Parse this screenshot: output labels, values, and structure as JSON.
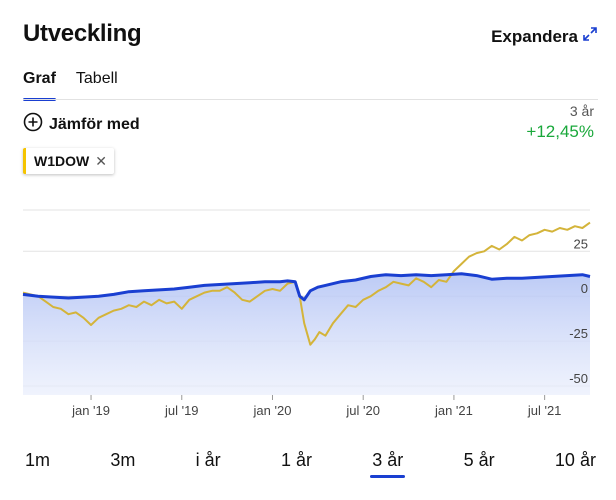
{
  "header": {
    "title": "Utveckling",
    "expand_label": "Expandera"
  },
  "tabs": [
    {
      "label": "Graf",
      "active": true
    },
    {
      "label": "Tabell",
      "active": false
    }
  ],
  "compare": {
    "label": "Jämför med",
    "icon": "plus-circle-icon"
  },
  "summary": {
    "period": "3 år",
    "change": "+12,45%",
    "change_color": "#1aa83b"
  },
  "chip": {
    "label": "W1DOW",
    "color": "#f5c400",
    "remove_icon": "close-icon"
  },
  "ranges": [
    {
      "label": "1m",
      "active": false
    },
    {
      "label": "3m",
      "active": false
    },
    {
      "label": "i år",
      "active": false
    },
    {
      "label": "1 år",
      "active": false
    },
    {
      "label": "3 år",
      "active": true
    },
    {
      "label": "5 år",
      "active": false
    },
    {
      "label": "10 år",
      "active": false
    }
  ],
  "chart_data": {
    "type": "line",
    "x_tick_labels": [
      "jan '19",
      "jul '19",
      "jan '20",
      "jul '20",
      "jan '21",
      "jul '21"
    ],
    "x_tick_positions": [
      4.5,
      10.5,
      16.5,
      22.5,
      28.5,
      34.5
    ],
    "xlim": [
      0,
      37.5
    ],
    "y_tick_labels": [
      "25",
      "0",
      "-25",
      "-50"
    ],
    "y_ticks": [
      25,
      0,
      -25,
      -50
    ],
    "ylim": [
      -55,
      48
    ],
    "grid": true,
    "y_axis_side": "right",
    "series": [
      {
        "color": "#1a3fd1",
        "area": true,
        "x": [
          0,
          1,
          2,
          3,
          4,
          5,
          6,
          7,
          8,
          9,
          10,
          11,
          12,
          13,
          14,
          15,
          16,
          17,
          17.5,
          18,
          18.3,
          18.6,
          19,
          19.5,
          20,
          21,
          22,
          23,
          24,
          25,
          26,
          27,
          28,
          29,
          30,
          31,
          32,
          33,
          34,
          35,
          36,
          37,
          37.5
        ],
        "y": [
          1,
          0,
          -0.5,
          -1,
          -0.5,
          0,
          1,
          2.5,
          3,
          3.5,
          4,
          5,
          6,
          6.5,
          7,
          7.5,
          8,
          8,
          8.5,
          8,
          0,
          -2,
          3,
          5,
          6,
          8,
          9,
          11,
          12,
          11.5,
          12,
          11.5,
          12,
          12.5,
          11.5,
          9.5,
          10,
          10,
          10.5,
          11,
          11.5,
          12,
          11
        ]
      },
      {
        "color": "#d4b43a",
        "x": [
          0,
          1,
          1.5,
          2,
          2.5,
          3,
          3.5,
          4,
          4.5,
          5,
          5.5,
          6,
          6.5,
          7,
          7.5,
          8,
          8.5,
          9,
          9.5,
          10,
          10.5,
          11,
          11.5,
          12,
          12.5,
          13,
          13.5,
          14,
          14.5,
          15,
          15.5,
          16,
          16.5,
          17,
          17.5,
          18,
          18.3,
          18.6,
          19,
          19.3,
          19.6,
          20,
          20.5,
          21,
          21.5,
          22,
          22.5,
          23,
          23.5,
          24,
          24.5,
          25,
          25.5,
          26,
          26.5,
          27,
          27.5,
          28,
          28.5,
          29,
          29.5,
          30,
          30.5,
          31,
          31.5,
          32,
          32.5,
          33,
          33.5,
          34,
          34.5,
          35,
          35.5,
          36,
          36.5,
          37,
          37.5
        ],
        "y": [
          2,
          0,
          -3,
          -6,
          -7,
          -10,
          -9,
          -12,
          -16,
          -12,
          -10,
          -8,
          -7,
          -5,
          -6,
          -3,
          -5,
          -2,
          -4,
          -3,
          -7,
          -2,
          0,
          2,
          3,
          3,
          5,
          2,
          -2,
          -3,
          0,
          3,
          4,
          3,
          7,
          8,
          0,
          -15,
          -27,
          -24,
          -20,
          -22,
          -15,
          -10,
          -5,
          -6,
          -2,
          0,
          3,
          5,
          8,
          7,
          6,
          10,
          8,
          5,
          9,
          8,
          14,
          18,
          22,
          24,
          25,
          28,
          26,
          29,
          33,
          31,
          34,
          35,
          37,
          36,
          38,
          37,
          39,
          38,
          41
        ]
      }
    ]
  }
}
